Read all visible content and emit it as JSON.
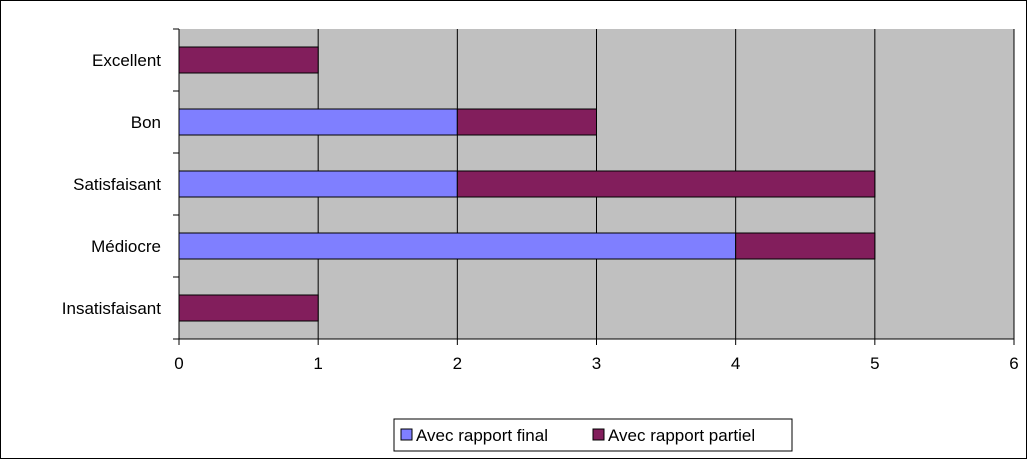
{
  "chart_data": {
    "type": "bar",
    "orientation": "horizontal",
    "stacked": true,
    "categories": [
      "Excellent",
      "Bon",
      "Satisfaisant",
      "Médiocre",
      "Insatisfaisant"
    ],
    "series": [
      {
        "name": "Avec rapport final",
        "values": [
          0,
          2,
          2,
          4,
          0
        ],
        "color": "#7f7fff"
      },
      {
        "name": "Avec rapport partiel",
        "values": [
          1,
          1,
          3,
          1,
          1
        ],
        "color": "#821e5c"
      }
    ],
    "xlim": [
      0,
      6
    ],
    "xticks": [
      "0",
      "1",
      "2",
      "3",
      "4",
      "5",
      "6"
    ],
    "grid": true,
    "plot_background": "#c0c0c0",
    "legend_position": "bottom"
  }
}
